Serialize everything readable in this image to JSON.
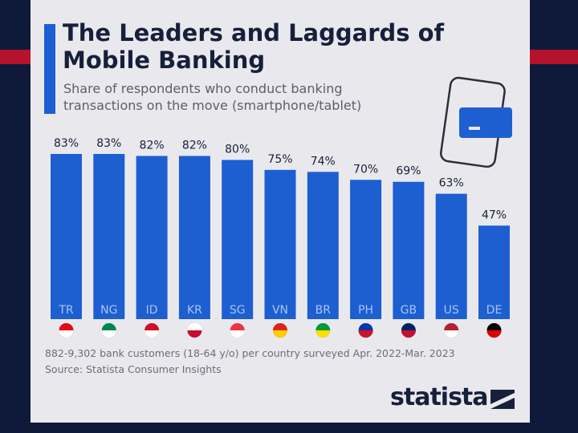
{
  "chart_data": {
    "type": "bar",
    "title": "The Leaders and Laggards of Mobile Banking",
    "subtitle": "Share of respondents who conduct banking transactions on the move (smartphone/tablet)",
    "categories": [
      "TR",
      "NG",
      "ID",
      "KR",
      "SG",
      "VN",
      "BR",
      "PH",
      "GB",
      "US",
      "DE"
    ],
    "values": [
      83,
      83,
      82,
      82,
      80,
      75,
      74,
      70,
      69,
      63,
      47
    ],
    "value_labels": [
      "83%",
      "83%",
      "82%",
      "82%",
      "80%",
      "75%",
      "74%",
      "70%",
      "69%",
      "63%",
      "47%"
    ],
    "color": "#1d5fd1",
    "note": "882-9,302 bank customers (18-64 y/o) per country surveyed Apr. 2022-Mar. 2023",
    "source": "Source: Statista Consumer Insights",
    "brand": "statista"
  }
}
